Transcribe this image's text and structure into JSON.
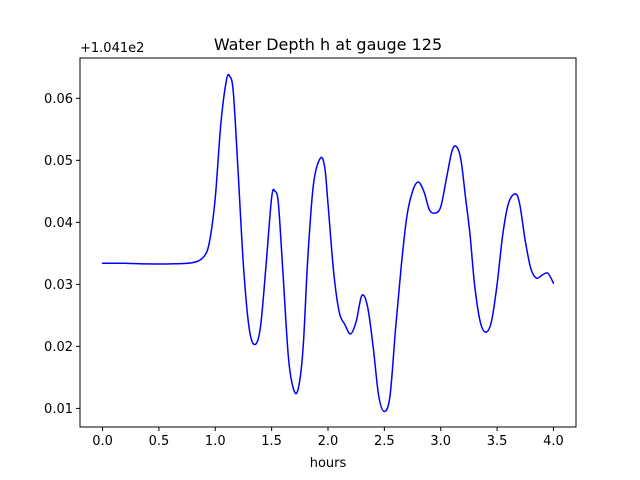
{
  "chart_data": {
    "type": "line",
    "title": "Water Depth h at gauge 125",
    "xlabel": "hours",
    "ylabel": "",
    "offset_text": "+1.041e2",
    "xlim": [
      -0.2,
      4.2
    ],
    "ylim": [
      0.007,
      0.0665
    ],
    "xticks": [
      0.0,
      0.5,
      1.0,
      1.5,
      2.0,
      2.5,
      3.0,
      3.5,
      4.0
    ],
    "xtick_labels": [
      "0.0",
      "0.5",
      "1.0",
      "1.5",
      "2.0",
      "2.5",
      "3.0",
      "3.5",
      "4.0"
    ],
    "yticks": [
      0.01,
      0.02,
      0.03,
      0.04,
      0.05,
      0.06
    ],
    "ytick_labels": [
      "0.01",
      "0.02",
      "0.03",
      "0.04",
      "0.05",
      "0.06"
    ],
    "grid": false,
    "series": [
      {
        "color": "#0000ff",
        "x": [
          0.0,
          0.2,
          0.4,
          0.6,
          0.8,
          0.9,
          0.95,
          1.0,
          1.05,
          1.1,
          1.13,
          1.16,
          1.2,
          1.25,
          1.3,
          1.35,
          1.4,
          1.45,
          1.5,
          1.53,
          1.56,
          1.6,
          1.65,
          1.7,
          1.74,
          1.78,
          1.82,
          1.87,
          1.93,
          1.97,
          2.0,
          2.05,
          2.1,
          2.15,
          2.2,
          2.25,
          2.3,
          2.35,
          2.4,
          2.45,
          2.5,
          2.55,
          2.6,
          2.65,
          2.7,
          2.75,
          2.8,
          2.85,
          2.9,
          2.95,
          3.0,
          3.05,
          3.1,
          3.14,
          3.18,
          3.22,
          3.26,
          3.3,
          3.35,
          3.4,
          3.45,
          3.5,
          3.55,
          3.6,
          3.66,
          3.7,
          3.75,
          3.8,
          3.85,
          3.9,
          3.95,
          4.0
        ],
        "y": [
          0.0334,
          0.0334,
          0.0333,
          0.0333,
          0.0335,
          0.0345,
          0.037,
          0.044,
          0.056,
          0.063,
          0.0635,
          0.061,
          0.049,
          0.033,
          0.023,
          0.0203,
          0.023,
          0.033,
          0.044,
          0.045,
          0.043,
          0.032,
          0.018,
          0.0128,
          0.0135,
          0.02,
          0.034,
          0.046,
          0.0503,
          0.049,
          0.043,
          0.032,
          0.0255,
          0.0235,
          0.022,
          0.024,
          0.0282,
          0.0265,
          0.02,
          0.012,
          0.0095,
          0.012,
          0.023,
          0.033,
          0.041,
          0.045,
          0.0465,
          0.045,
          0.042,
          0.0415,
          0.0425,
          0.047,
          0.0515,
          0.0522,
          0.05,
          0.044,
          0.038,
          0.03,
          0.024,
          0.0223,
          0.024,
          0.03,
          0.038,
          0.043,
          0.0446,
          0.043,
          0.037,
          0.0325,
          0.031,
          0.0315,
          0.0318,
          0.0302
        ]
      }
    ]
  }
}
